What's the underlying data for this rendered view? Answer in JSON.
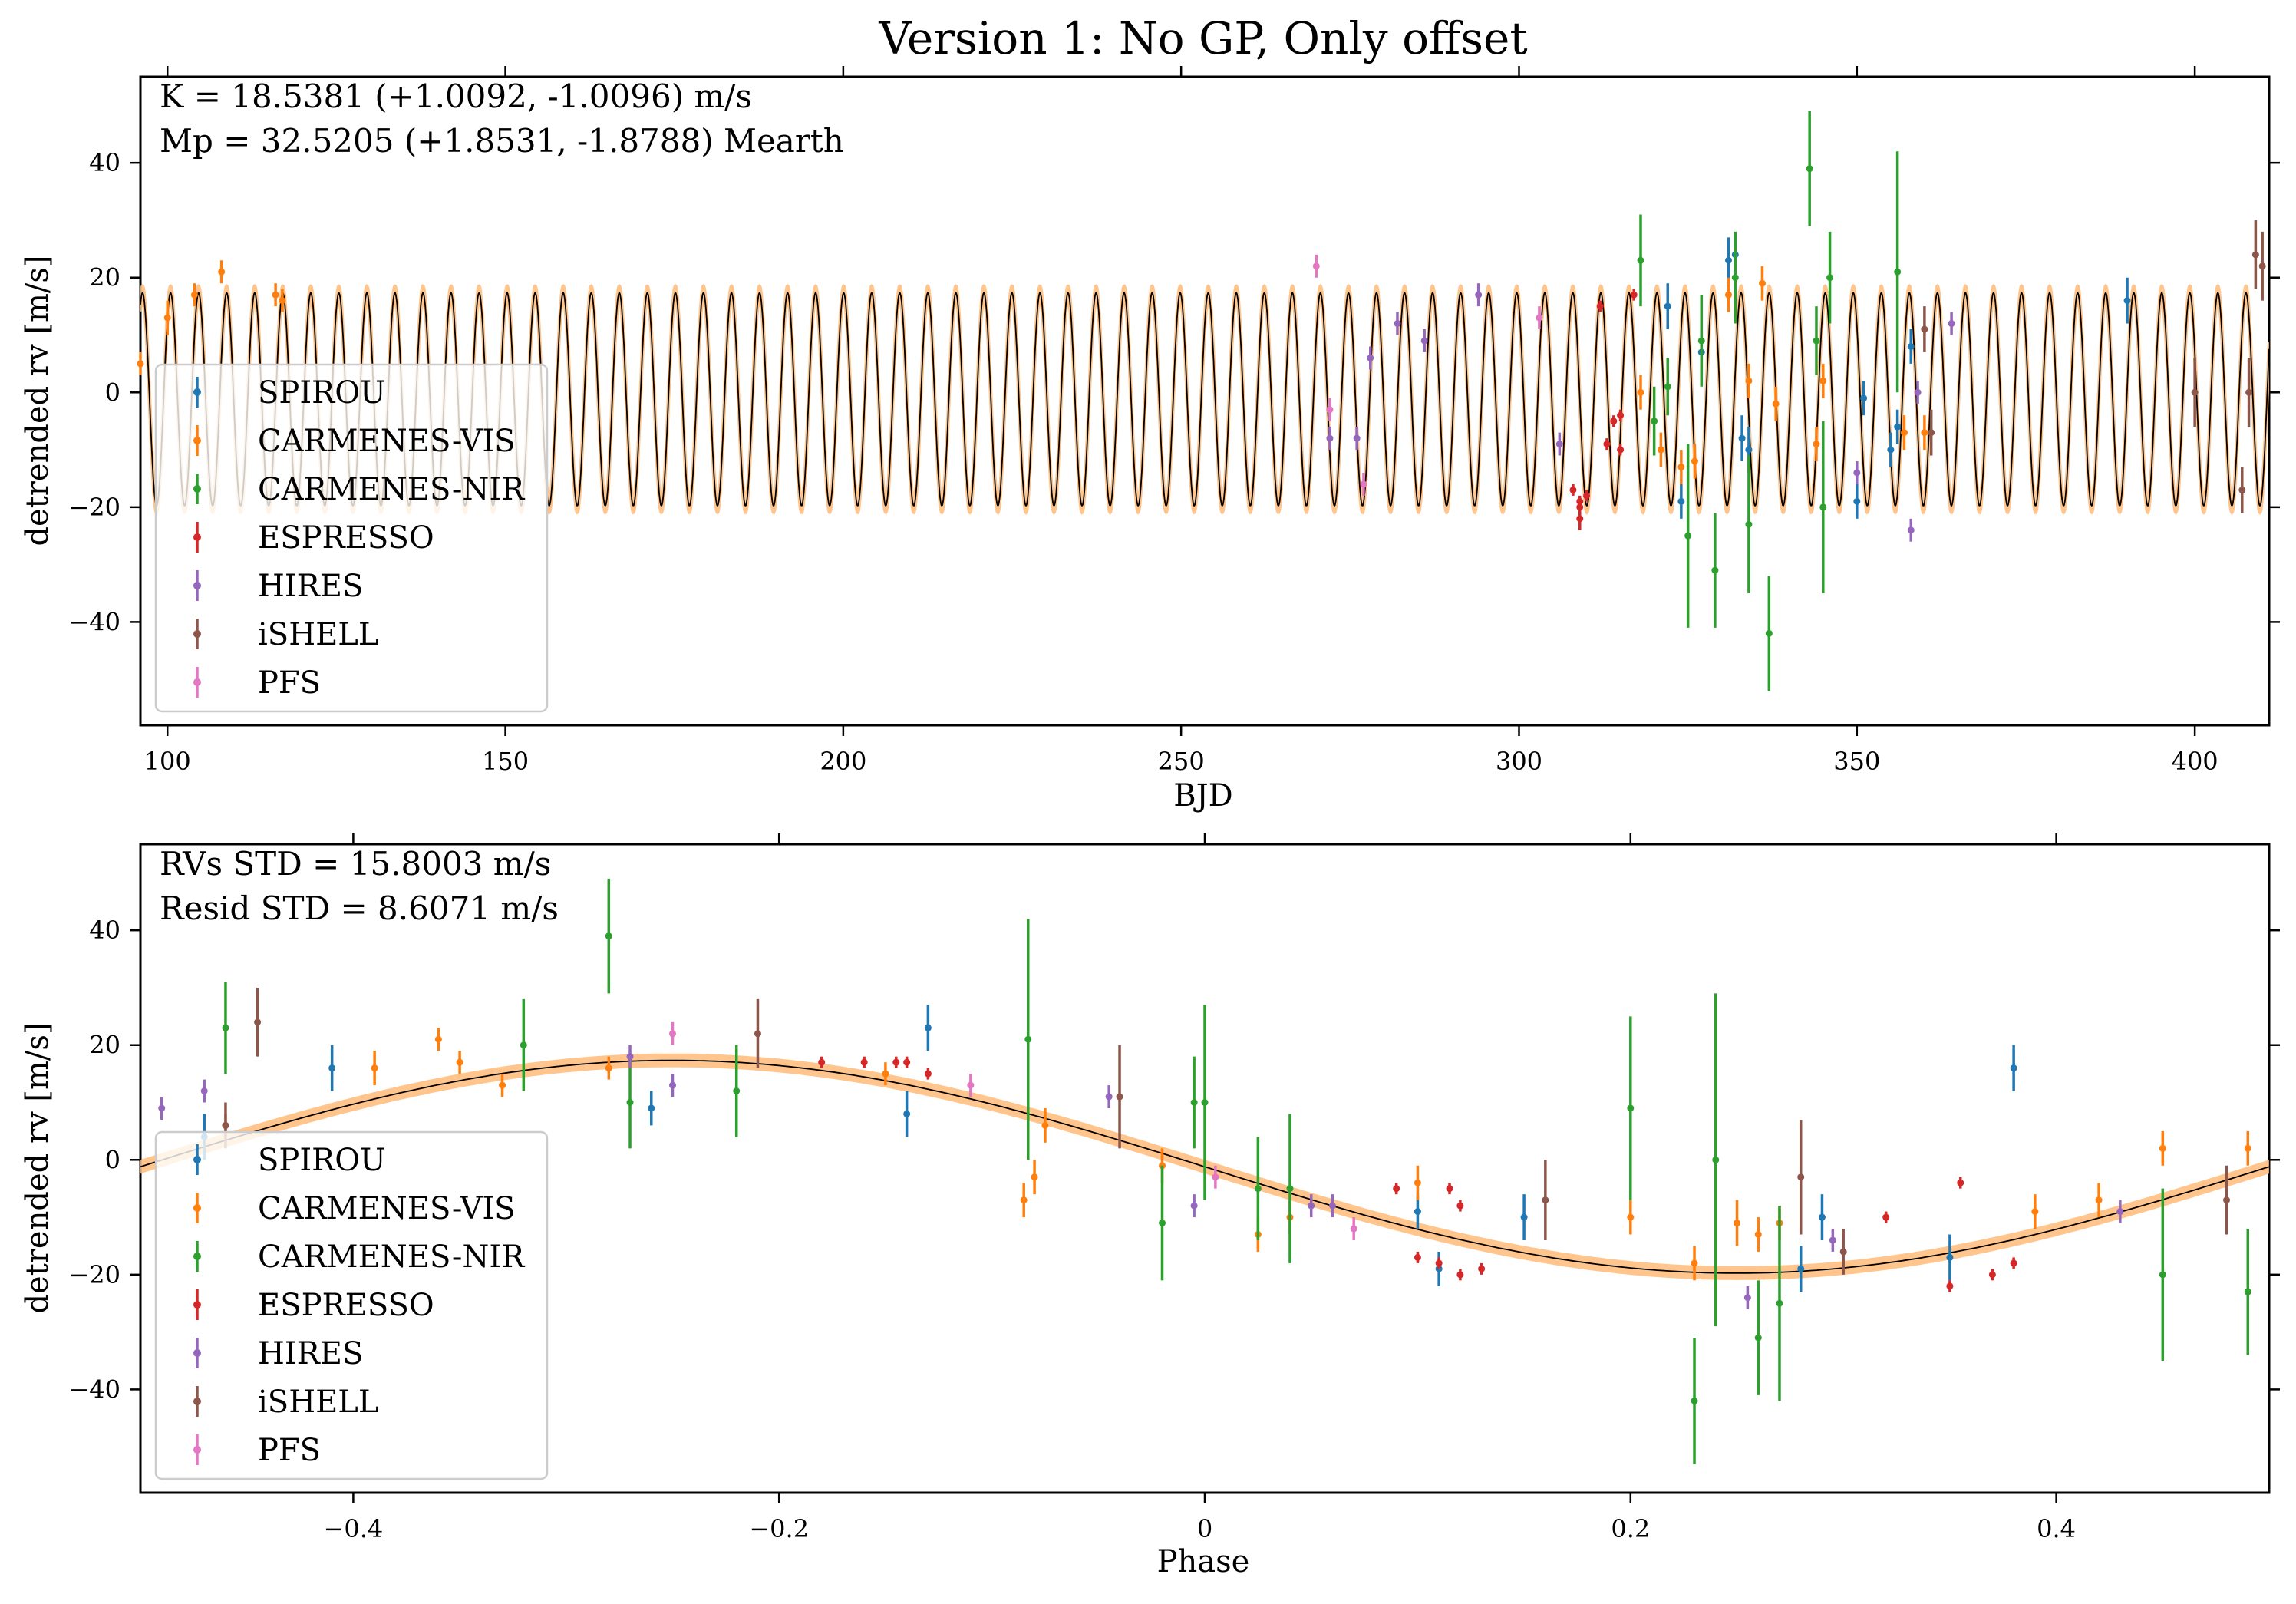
{
  "colors": {
    "SPIROU": "#1f77b4",
    "CARMENES-VIS": "#ff7f0e",
    "CARMENES-NIR": "#2ca02c",
    "ESPRESSO": "#d62728",
    "HIRES": "#9467bd",
    "iSHELL": "#8c564b",
    "PFS": "#e377c2",
    "model": "#000000",
    "band": "#ffbb78"
  },
  "figure": {
    "title": "Version 1: No GP, Only offset"
  },
  "model": {
    "K": 18.5381,
    "offset": -1.2,
    "period": 4.15,
    "t0": 101.5
  },
  "chart_data": [
    {
      "type": "scatter",
      "xlabel": "BJD",
      "ylabel": "detrended rv [m/s]",
      "xlim": [
        96,
        411
      ],
      "ylim": [
        -58,
        55
      ],
      "xticks": [
        100,
        150,
        200,
        250,
        300,
        350,
        400
      ],
      "yticks": [
        -40,
        -20,
        0,
        20,
        40
      ],
      "annotations": [
        "K = 18.5381 (+1.0092, -1.0096) m/s",
        "Mp = 32.5205 (+1.8531, -1.8788) Mearth"
      ],
      "legend": {
        "position": "lower-left",
        "entries": [
          "SPIROU",
          "CARMENES-VIS",
          "CARMENES-NIR",
          "ESPRESSO",
          "HIRES",
          "iSHELL",
          "PFS"
        ]
      },
      "series": [
        {
          "name": "SPIROU",
          "points": [
            [
              322,
              15,
              4
            ],
            [
              324,
              -19,
              3
            ],
            [
              327,
              7,
              4
            ],
            [
              331,
              23,
              4
            ],
            [
              332,
              24,
              4
            ],
            [
              333,
              -8,
              4
            ],
            [
              334,
              -10,
              4
            ],
            [
              350,
              -19,
              3
            ],
            [
              351,
              -1,
              3
            ],
            [
              355,
              -10,
              3
            ],
            [
              356,
              -6,
              3
            ],
            [
              358,
              8,
              3
            ],
            [
              390,
              16,
              4
            ]
          ]
        },
        {
          "name": "CARMENES-VIS",
          "points": [
            [
              96,
              5,
              2
            ],
            [
              100,
              13,
              3
            ],
            [
              104,
              17,
              2
            ],
            [
              108,
              21,
              2
            ],
            [
              116,
              17,
              2
            ],
            [
              117,
              16,
              2
            ],
            [
              318,
              0,
              3
            ],
            [
              321,
              -10,
              3
            ],
            [
              324,
              -13,
              3
            ],
            [
              326,
              -12,
              3
            ],
            [
              331,
              17,
              3
            ],
            [
              334,
              2,
              3
            ],
            [
              336,
              19,
              3
            ],
            [
              338,
              -2,
              3
            ],
            [
              344,
              -9,
              3
            ],
            [
              345,
              2,
              3
            ],
            [
              357,
              -7,
              3
            ],
            [
              360,
              -7,
              3
            ]
          ]
        },
        {
          "name": "CARMENES-NIR",
          "points": [
            [
              318,
              23,
              8
            ],
            [
              320,
              -5,
              6
            ],
            [
              322,
              1,
              5
            ],
            [
              325,
              -25,
              16
            ],
            [
              327,
              9,
              8
            ],
            [
              329,
              -31,
              10
            ],
            [
              332,
              20,
              8
            ],
            [
              334,
              -23,
              12
            ],
            [
              337,
              -42,
              10
            ],
            [
              343,
              39,
              10
            ],
            [
              344,
              9,
              6
            ],
            [
              345,
              -20,
              15
            ],
            [
              346,
              20,
              8
            ],
            [
              356,
              21,
              21
            ]
          ]
        },
        {
          "name": "ESPRESSO",
          "points": [
            [
              308,
              -17,
              1
            ],
            [
              309,
              -19,
              1
            ],
            [
              309,
              -20,
              1
            ],
            [
              309,
              -22,
              2
            ],
            [
              310,
              -18,
              1
            ],
            [
              312,
              15,
              1
            ],
            [
              313,
              -9,
              1
            ],
            [
              314,
              -5,
              1
            ],
            [
              315,
              -4,
              1
            ],
            [
              315,
              -10,
              1
            ],
            [
              317,
              17,
              1
            ]
          ]
        },
        {
          "name": "HIRES",
          "points": [
            [
              272,
              -8,
              2
            ],
            [
              276,
              -8,
              2
            ],
            [
              278,
              6,
              2
            ],
            [
              282,
              12,
              2
            ],
            [
              286,
              9,
              2
            ],
            [
              294,
              17,
              2
            ],
            [
              306,
              -9,
              2
            ],
            [
              350,
              -14,
              2
            ],
            [
              358,
              -24,
              2
            ],
            [
              359,
              0,
              2
            ],
            [
              364,
              12,
              2
            ]
          ]
        },
        {
          "name": "iSHELL",
          "points": [
            [
              360,
              11,
              4
            ],
            [
              361,
              -7,
              4
            ],
            [
              400,
              0,
              6
            ],
            [
              407,
              -17,
              4
            ],
            [
              408,
              0,
              6
            ],
            [
              409,
              24,
              6
            ],
            [
              410,
              22,
              6
            ]
          ]
        },
        {
          "name": "PFS",
          "points": [
            [
              270,
              22,
              2
            ],
            [
              272,
              -3,
              2
            ],
            [
              277,
              -16,
              2
            ],
            [
              303,
              13,
              2
            ]
          ]
        }
      ]
    },
    {
      "type": "scatter",
      "xlabel": "Phase",
      "ylabel": "detrended rv [m/s]",
      "xlim": [
        -0.5,
        0.5
      ],
      "ylim": [
        -58,
        55
      ],
      "xticks": [
        -0.4,
        -0.2,
        0.0,
        0.2,
        0.4
      ],
      "yticks": [
        -40,
        -20,
        0,
        20,
        40
      ],
      "annotations": [
        "RVs STD = 15.8003 m/s",
        "Resid STD = 8.6071 m/s"
      ],
      "legend": {
        "position": "lower-left",
        "entries": [
          "SPIROU",
          "CARMENES-VIS",
          "CARMENES-NIR",
          "ESPRESSO",
          "HIRES",
          "iSHELL",
          "PFS"
        ]
      },
      "series": [
        {
          "name": "SPIROU",
          "points": [
            [
              -0.47,
              4,
              4
            ],
            [
              -0.41,
              16,
              4
            ],
            [
              -0.26,
              9,
              3
            ],
            [
              -0.14,
              8,
              4
            ],
            [
              -0.13,
              23,
              4
            ],
            [
              0.1,
              -9,
              3
            ],
            [
              0.11,
              -19,
              3
            ],
            [
              0.15,
              -10,
              4
            ],
            [
              0.28,
              -19,
              4
            ],
            [
              0.29,
              -10,
              4
            ],
            [
              0.35,
              -17,
              4
            ],
            [
              0.38,
              16,
              4
            ]
          ]
        },
        {
          "name": "CARMENES-VIS",
          "points": [
            [
              -0.46,
              6,
              2
            ],
            [
              -0.39,
              16,
              3
            ],
            [
              -0.36,
              21,
              2
            ],
            [
              -0.35,
              17,
              2
            ],
            [
              -0.33,
              13,
              2
            ],
            [
              -0.28,
              16,
              2
            ],
            [
              -0.15,
              15,
              2
            ],
            [
              -0.085,
              -7,
              3
            ],
            [
              -0.08,
              -3,
              3
            ],
            [
              -0.075,
              6,
              3
            ],
            [
              -0.02,
              -1,
              3
            ],
            [
              0.025,
              -13,
              3
            ],
            [
              0.04,
              -10,
              3
            ],
            [
              0.1,
              -4,
              3
            ],
            [
              0.2,
              -10,
              3
            ],
            [
              0.23,
              -18,
              3
            ],
            [
              0.25,
              -11,
              4
            ],
            [
              0.26,
              -13,
              3
            ],
            [
              0.27,
              -11,
              3
            ],
            [
              0.39,
              -9,
              3
            ],
            [
              0.42,
              -7,
              3
            ],
            [
              0.45,
              2,
              3
            ],
            [
              0.49,
              2,
              3
            ]
          ]
        },
        {
          "name": "CARMENES-NIR",
          "points": [
            [
              -0.46,
              23,
              8
            ],
            [
              -0.32,
              20,
              8
            ],
            [
              -0.28,
              39,
              10
            ],
            [
              -0.27,
              10,
              8
            ],
            [
              -0.22,
              12,
              8
            ],
            [
              -0.083,
              21,
              21
            ],
            [
              -0.02,
              -11,
              10
            ],
            [
              -0.005,
              10,
              8
            ],
            [
              0.0,
              10,
              17
            ],
            [
              0.025,
              -5,
              9
            ],
            [
              0.04,
              -5,
              13
            ],
            [
              0.2,
              9,
              16
            ],
            [
              0.23,
              -42,
              11
            ],
            [
              0.24,
              0,
              29
            ],
            [
              0.26,
              -31,
              10
            ],
            [
              0.27,
              -25,
              17
            ],
            [
              0.45,
              -20,
              15
            ],
            [
              0.49,
              -23,
              11
            ]
          ]
        },
        {
          "name": "ESPRESSO",
          "points": [
            [
              -0.18,
              17,
              1
            ],
            [
              -0.16,
              17,
              1
            ],
            [
              -0.145,
              17,
              1
            ],
            [
              -0.14,
              17,
              1
            ],
            [
              -0.13,
              15,
              1
            ],
            [
              0.09,
              -5,
              1
            ],
            [
              0.1,
              -17,
              1
            ],
            [
              0.11,
              -18,
              1
            ],
            [
              0.115,
              -5,
              1
            ],
            [
              0.12,
              -8,
              1
            ],
            [
              0.12,
              -20,
              1
            ],
            [
              0.13,
              -19,
              1
            ],
            [
              0.32,
              -10,
              1
            ],
            [
              0.35,
              -22,
              1
            ],
            [
              0.355,
              -4,
              1
            ],
            [
              0.37,
              -20,
              1
            ],
            [
              0.38,
              -18,
              1
            ]
          ]
        },
        {
          "name": "HIRES",
          "points": [
            [
              -0.49,
              9,
              2
            ],
            [
              -0.47,
              12,
              2
            ],
            [
              -0.27,
              18,
              2
            ],
            [
              -0.25,
              13,
              2
            ],
            [
              -0.045,
              11,
              2
            ],
            [
              -0.005,
              -8,
              2
            ],
            [
              0.05,
              -8,
              2
            ],
            [
              0.06,
              -8,
              2
            ],
            [
              0.255,
              -24,
              2
            ],
            [
              0.295,
              -14,
              2
            ],
            [
              0.43,
              -9,
              2
            ]
          ]
        },
        {
          "name": "iSHELL",
          "points": [
            [
              -0.46,
              6,
              4
            ],
            [
              -0.445,
              24,
              6
            ],
            [
              -0.21,
              22,
              6
            ],
            [
              -0.04,
              11,
              9
            ],
            [
              0.16,
              -7,
              7
            ],
            [
              0.28,
              -3,
              10
            ],
            [
              0.3,
              -16,
              4
            ],
            [
              0.48,
              -7,
              6
            ]
          ]
        },
        {
          "name": "PFS",
          "points": [
            [
              -0.25,
              22,
              2
            ],
            [
              -0.11,
              13,
              2
            ],
            [
              0.005,
              -3,
              2
            ],
            [
              0.07,
              -12,
              2
            ]
          ]
        }
      ]
    }
  ]
}
